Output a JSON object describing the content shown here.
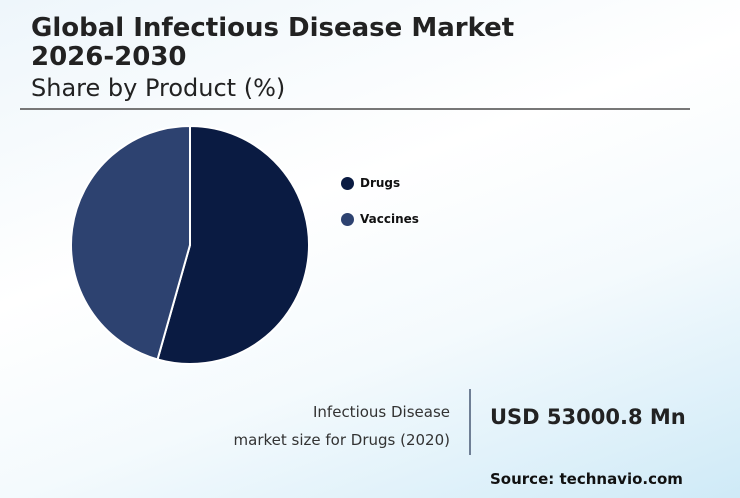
{
  "header": {
    "title": "Global Infectious Disease Market 2026-2030",
    "subtitle": "Share by Product (%)"
  },
  "legend": {
    "items": [
      {
        "label": "Drugs",
        "color": "#0a1b42"
      },
      {
        "label": "Vaccines",
        "color": "#2d4270"
      }
    ]
  },
  "stat": {
    "label_line1": "Infectious Disease",
    "label_line2": "market size for Drugs (2020)",
    "value": "USD 53000.8 Mn"
  },
  "footer": {
    "source": "Source: technavio.com"
  },
  "chart_data": {
    "type": "pie",
    "title": "Global Infectious Disease Market 2026-2030",
    "subtitle": "Share by Product (%)",
    "categories": [
      "Drugs",
      "Vaccines"
    ],
    "values": [
      54.4,
      45.6
    ],
    "colors": [
      "#0a1b42",
      "#2d4270"
    ],
    "start_angle": "12 o'clock, clockwise",
    "legend_position": "right",
    "grid": false
  }
}
